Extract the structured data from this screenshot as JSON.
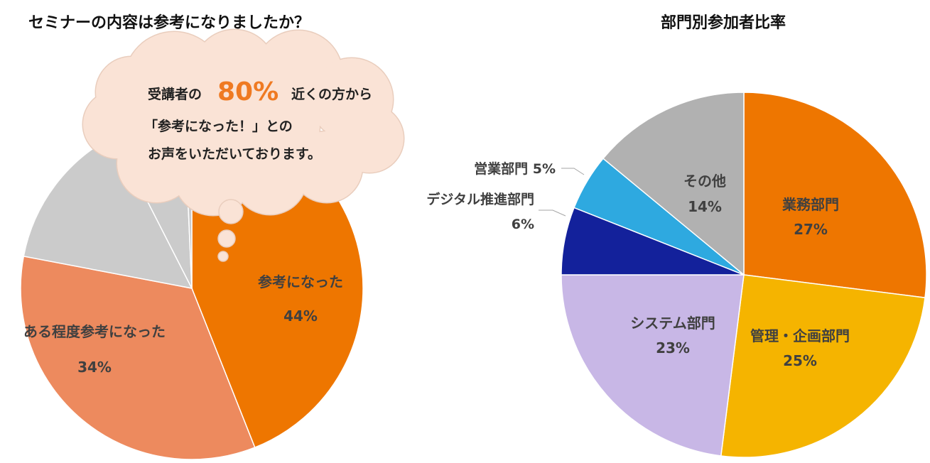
{
  "chart_data": [
    {
      "type": "pie",
      "title": "セミナーの内容は参考になりましたか？",
      "slices": [
        {
          "label": "参考になった",
          "value": 44,
          "display": "44%",
          "color": "#ee7600"
        },
        {
          "label": "ある程度参考になった",
          "value": 34,
          "display": "34%",
          "color": "#ed8a5e"
        },
        {
          "label": "",
          "value": 14.5,
          "display": "",
          "color": "#cbcbcb"
        },
        {
          "label": "",
          "value": 6.8,
          "display": "",
          "color": "#cbcbcb"
        },
        {
          "label": "",
          "value": 0.7,
          "display": "",
          "color": "#cbcbcb"
        }
      ],
      "callout": {
        "line1_before": "受講者の",
        "highlight": "80%",
        "line1_after": "近くの方から",
        "line2": "「参考になった！」との",
        "line3": "お声をいただいております。",
        "fill": "#fae3d6"
      }
    },
    {
      "type": "pie",
      "title": "部門別参加者比率",
      "slices": [
        {
          "label": "業務部門",
          "value": 27,
          "display": "27%",
          "color": "#ee7600"
        },
        {
          "label": "管理・企画部門",
          "value": 25,
          "display": "25%",
          "color": "#f5b400"
        },
        {
          "label": "システム部門",
          "value": 23,
          "display": "23%",
          "color": "#c8b7e6"
        },
        {
          "label": "デジタル推進部門",
          "value": 6,
          "display": "6%",
          "color": "#13219b"
        },
        {
          "label": "営業部門",
          "value": 5,
          "display": "5%",
          "color": "#2ea9e0"
        },
        {
          "label": "その他",
          "value": 14,
          "display": "14%",
          "color": "#b1b1b1"
        }
      ]
    }
  ]
}
